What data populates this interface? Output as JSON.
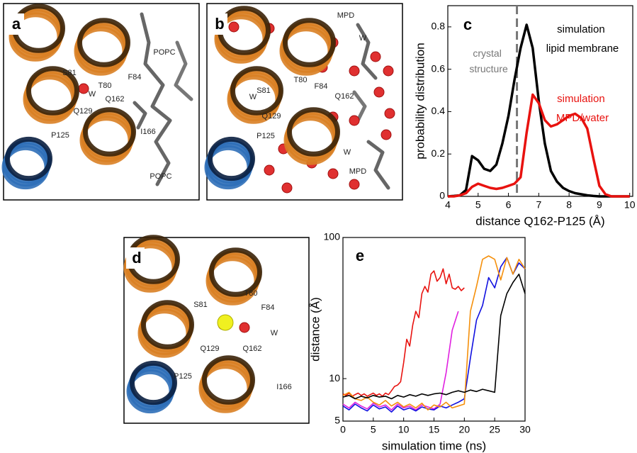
{
  "panels": [
    {
      "label": "a",
      "texts": [
        "POPC",
        "F84",
        "S81",
        "T80",
        "W",
        "Q162",
        "Q129",
        "P125",
        "I166",
        "POPC"
      ]
    },
    {
      "label": "b",
      "texts": [
        "MPD",
        "W",
        "T80",
        "F84",
        "S81",
        "W",
        "Q162",
        "Q129",
        "P125",
        "W",
        "MPD"
      ]
    },
    {
      "label": "d",
      "texts": [
        "T80",
        "S81",
        "F84",
        "W",
        "Q129",
        "Q162",
        "P125",
        "I166"
      ]
    }
  ],
  "chart_data": [
    {
      "type": "line",
      "panel": "c",
      "x_label": "distance Q162-P125 (Å)",
      "y_label": "probability distribution",
      "x": [
        4.0,
        4.2,
        4.4,
        4.6,
        4.8,
        5.0,
        5.2,
        5.4,
        5.6,
        5.8,
        6.0,
        6.2,
        6.4,
        6.6,
        6.8,
        7.0,
        7.2,
        7.4,
        7.6,
        7.8,
        8.0,
        8.2,
        8.4,
        8.6,
        8.8,
        9.0,
        9.2,
        9.4,
        9.6,
        9.8,
        10.0
      ],
      "series": [
        {
          "name": "simulation lipid membrane",
          "color": "#000000",
          "values": [
            0,
            0.002,
            0.005,
            0.03,
            0.19,
            0.17,
            0.13,
            0.12,
            0.15,
            0.25,
            0.38,
            0.55,
            0.7,
            0.81,
            0.7,
            0.45,
            0.25,
            0.12,
            0.07,
            0.04,
            0.025,
            0.015,
            0.01,
            0.005,
            0.002,
            0,
            0,
            0,
            0,
            0,
            0
          ]
        },
        {
          "name": "simulation MPD/water",
          "color": "#e8120f",
          "values": [
            0,
            0,
            0.005,
            0.015,
            0.045,
            0.06,
            0.05,
            0.04,
            0.035,
            0.04,
            0.05,
            0.06,
            0.09,
            0.3,
            0.48,
            0.44,
            0.36,
            0.33,
            0.34,
            0.36,
            0.38,
            0.39,
            0.37,
            0.32,
            0.18,
            0.05,
            0.01,
            0,
            0,
            0,
            0
          ]
        }
      ],
      "vline": {
        "x": 6.28,
        "label": "crystal structure",
        "color": "#777777"
      },
      "xlim": [
        4,
        10.1
      ],
      "xticks": [
        4,
        5,
        6,
        7,
        8,
        9,
        10
      ],
      "ylim": [
        0,
        0.9
      ],
      "yticks": [
        0,
        0.2,
        0.4,
        0.6,
        0.8
      ]
    },
    {
      "type": "line",
      "panel": "e",
      "x_label": "simulation time (ns)",
      "y_label": "distance (Å)",
      "log_y": true,
      "series": [
        {
          "color": "#e8120f",
          "x": [
            0,
            0.5,
            1,
            1.5,
            2,
            2.5,
            3,
            3.5,
            4,
            4.5,
            5,
            5.5,
            6,
            6.5,
            7,
            7.5,
            8,
            8.5,
            9,
            9.5,
            10,
            10.5,
            11,
            11.5,
            12,
            12.5,
            13,
            13.5,
            14,
            14.5,
            15,
            15.5,
            16,
            16.5,
            17,
            17.5,
            18,
            18.5,
            19,
            19.5,
            20
          ],
          "values": [
            7.8,
            7.6,
            7.9,
            7.5,
            7.7,
            7.9,
            7.6,
            7.8,
            7.5,
            7.7,
            7.9,
            7.6,
            7.8,
            7.5,
            7.9,
            7.7,
            8.2,
            8.8,
            9.0,
            9.5,
            13,
            19,
            17,
            24,
            30,
            27,
            40,
            45,
            41,
            55,
            58,
            49,
            52,
            60,
            47,
            55,
            44,
            43,
            45,
            42,
            44
          ]
        },
        {
          "color": "#e020e0",
          "x": [
            0,
            1,
            2,
            3,
            4,
            5,
            6,
            7,
            8,
            9,
            10,
            11,
            12,
            13,
            14,
            15,
            16,
            17,
            18,
            19
          ],
          "values": [
            6.6,
            6.2,
            6.8,
            6.4,
            6.1,
            6.7,
            6.3,
            6.5,
            6.0,
            6.6,
            6.2,
            6.4,
            6.0,
            6.5,
            6.3,
            6.1,
            6.6,
            11,
            22,
            30
          ]
        },
        {
          "color": "#1010e0",
          "x": [
            0,
            1,
            2,
            3,
            4,
            5,
            6,
            7,
            8,
            9,
            10,
            11,
            12,
            13,
            14,
            15,
            16,
            17,
            18,
            19,
            20,
            21,
            22,
            23,
            24,
            25,
            26,
            27,
            28,
            29,
            30
          ],
          "values": [
            6.4,
            6.0,
            6.6,
            6.2,
            5.9,
            6.5,
            6.1,
            6.3,
            5.8,
            6.4,
            6.0,
            6.2,
            5.9,
            6.3,
            6.1,
            6.0,
            6.4,
            6.2,
            6.5,
            6.8,
            7.2,
            14,
            26,
            33,
            52,
            44,
            62,
            72,
            55,
            66,
            60
          ]
        },
        {
          "color": "#f5900c",
          "x": [
            0,
            1,
            2,
            3,
            4,
            5,
            6,
            7,
            8,
            9,
            10,
            11,
            12,
            13,
            14,
            15,
            16,
            17,
            18,
            19,
            20,
            21,
            22,
            23,
            24,
            25,
            26,
            27,
            28,
            29,
            30
          ],
          "values": [
            7.6,
            8.0,
            7.2,
            7.0,
            7.4,
            6.8,
            6.5,
            7.0,
            6.4,
            6.8,
            6.3,
            6.6,
            6.2,
            6.7,
            6.0,
            6.5,
            6.3,
            6.8,
            6.2,
            6.4,
            6.6,
            30,
            45,
            70,
            74,
            70,
            50,
            72,
            55,
            70,
            60
          ]
        },
        {
          "color": "#000000",
          "x": [
            0,
            1,
            2,
            3,
            4,
            5,
            6,
            7,
            8,
            9,
            10,
            11,
            12,
            13,
            14,
            15,
            16,
            17,
            18,
            19,
            20,
            21,
            22,
            23,
            24,
            25,
            26,
            27,
            28,
            29,
            30
          ],
          "values": [
            7.4,
            7.6,
            7.2,
            7.5,
            7.3,
            7.6,
            7.4,
            7.5,
            7.2,
            7.6,
            7.4,
            7.7,
            7.5,
            7.8,
            7.6,
            7.8,
            7.9,
            7.7,
            8.0,
            8.2,
            8.0,
            8.3,
            8.1,
            8.4,
            8.2,
            8.0,
            28,
            40,
            48,
            55,
            40
          ]
        }
      ],
      "xlim": [
        0,
        30
      ],
      "xticks": [
        0,
        5,
        10,
        15,
        20,
        25,
        30
      ],
      "ylim": [
        5,
        100
      ],
      "yticks": [
        5,
        10,
        100
      ]
    }
  ]
}
